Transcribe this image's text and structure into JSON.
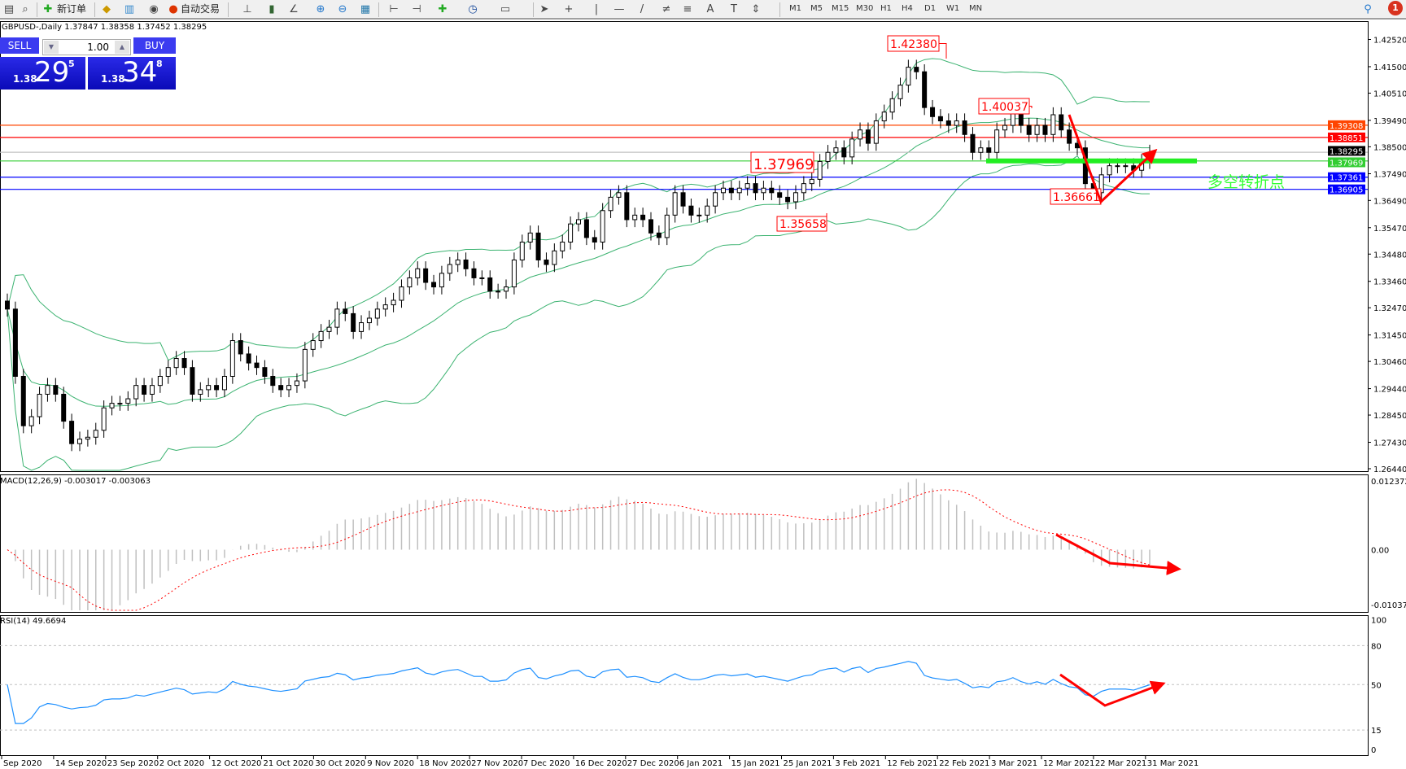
{
  "toolbar": {
    "new_order": "新订单",
    "auto_trading": "自动交易",
    "icons": [
      "new-chart-icon",
      "profiles-icon",
      "new-order-icon",
      "metaeditor-icon",
      "navigator-icon",
      "signals-icon",
      "auto-trading-icon",
      "bar-chart-icon",
      "candlestick-icon",
      "line-chart-icon",
      "zoom-in-icon",
      "zoom-out-icon",
      "tile-windows-icon",
      "chart-shift-icon",
      "autoscroll-icon",
      "indicators-icon",
      "periods-icon",
      "templates-icon",
      "cursor-icon",
      "crosshair-icon",
      "vertical-line-icon",
      "horizontal-line-icon",
      "trendline-icon",
      "equidistant-channel-icon",
      "fibonacci-icon",
      "text-icon",
      "text-label-icon",
      "arrows-icon"
    ],
    "timeframes": [
      "M1",
      "M5",
      "M15",
      "M30",
      "H1",
      "H4",
      "D1",
      "W1",
      "MN"
    ],
    "notification_count": "1"
  },
  "header": {
    "symbol_info": "GBPUSD-,Daily  1.37847 1.38358 1.37452 1.38295"
  },
  "trade_panel": {
    "sell_label": "SELL",
    "buy_label": "BUY",
    "lot": "1.00",
    "sell": {
      "big": "1.38",
      "main": "29",
      "pip": "5"
    },
    "buy": {
      "big": "1.38",
      "main": "34",
      "pip": "8"
    }
  },
  "macd_label": "MACD(12,26,9) -0.003017 -0.003063",
  "rsi_label": "RSI(14) 49.6694",
  "chart_data": {
    "type": "candlestick",
    "symbol": "GBPUSD",
    "timeframe": "Daily",
    "closes": [
      1.3242,
      1.299,
      1.2805,
      1.2839,
      1.2923,
      1.2956,
      1.2923,
      1.2822,
      1.2738,
      1.2755,
      1.2762,
      1.2788,
      1.2872,
      1.2889,
      1.2889,
      1.2906,
      1.2956,
      1.2923,
      1.2956,
      1.299,
      1.3023,
      1.3057,
      1.3023,
      1.2923,
      1.294,
      1.2956,
      1.294,
      1.299,
      1.3124,
      1.3074,
      1.304,
      1.3023,
      1.299,
      1.2956,
      1.294,
      1.2956,
      1.2973,
      1.3091,
      1.3124,
      1.3158,
      1.3174,
      1.3242,
      1.3225,
      1.3158,
      1.3191,
      1.3208,
      1.3242,
      1.3258,
      1.3275,
      1.3325,
      1.3359,
      1.3393,
      1.3342,
      1.3325,
      1.3376,
      1.3409,
      1.3426,
      1.3393,
      1.3359,
      1.3359,
      1.3309,
      1.3309,
      1.3325,
      1.3426,
      1.3493,
      1.3527,
      1.3426,
      1.3409,
      1.346,
      1.3493,
      1.3561,
      1.3577,
      1.351,
      1.3493,
      1.3611,
      1.3661,
      1.3678,
      1.3577,
      1.3594,
      1.3577,
      1.3527,
      1.351,
      1.3594,
      1.3678,
      1.3628,
      1.3594,
      1.3594,
      1.3628,
      1.3678,
      1.3695,
      1.3678,
      1.3695,
      1.3712,
      1.3678,
      1.3695,
      1.3678,
      1.3661,
      1.3644,
      1.3678,
      1.3712,
      1.3728,
      1.3795,
      1.3829,
      1.3846,
      1.3812,
      1.3879,
      1.3913,
      1.3863,
      1.3947,
      1.398,
      1.403,
      1.4081,
      1.4148,
      1.4131,
      1.3997,
      1.3963,
      1.3947,
      1.393,
      1.3947,
      1.3896,
      1.3829,
      1.3846,
      1.3829,
      1.3913,
      1.393,
      1.398,
      1.393,
      1.3896,
      1.393,
      1.3896,
      1.397,
      1.3913,
      1.3863,
      1.3846,
      1.3712,
      1.3678,
      1.3745,
      1.3779,
      1.3779,
      1.3779,
      1.3762,
      1.3795,
      1.38295
    ],
    "price_axis": [
      "1.42520",
      "1.41500",
      "1.40510",
      "1.39490",
      "1.38500",
      "1.37490",
      "1.36490",
      "1.35470",
      "1.34480",
      "1.33460",
      "1.32470",
      "1.31450",
      "1.30460",
      "1.29440",
      "1.28450",
      "1.27430",
      "1.26440"
    ],
    "ylim": [
      1.2644,
      1.4252
    ],
    "date_labels": [
      "Sep 2020",
      "14 Sep 2020",
      "23 Sep 2020",
      "2 Oct 2020",
      "12 Oct 2020",
      "21 Oct 2020",
      "30 Oct 2020",
      "9 Nov 2020",
      "18 Nov 2020",
      "27 Nov 2020",
      "7 Dec 2020",
      "16 Dec 2020",
      "27 Dec 2020",
      "6 Jan 2021",
      "15 Jan 2021",
      "25 Jan 2021",
      "3 Feb 2021",
      "12 Feb 2021",
      "22 Feb 2021",
      "3 Mar 2021",
      "12 Mar 2021",
      "22 Mar 2021",
      "31 Mar 2021"
    ],
    "indicators": {
      "bollinger": {
        "period": 20,
        "deviation": 2,
        "color": "#3cb371"
      },
      "macd": {
        "fast": 12,
        "slow": 26,
        "signal": 9,
        "axis": [
          "0.012372",
          "0.00",
          "-0.010374"
        ],
        "ylim": [
          -0.010374,
          0.012372
        ]
      },
      "rsi": {
        "period": 14,
        "axis": [
          "100",
          "80",
          "50",
          "15",
          "0"
        ],
        "levels": [
          80,
          50,
          15
        ]
      }
    },
    "horizontal_lines": [
      {
        "price": 1.39308,
        "label": "1.39308",
        "color": "#ff4500"
      },
      {
        "price": 1.38851,
        "label": "1.38851",
        "color": "#ff0000"
      },
      {
        "price": 1.38295,
        "label": "1.38295",
        "color": "#c0c0c0",
        "label_bg": "#000000"
      },
      {
        "price": 1.37969,
        "label": "1.37969",
        "color": "#32cd32"
      },
      {
        "price": 1.37361,
        "label": "1.37361",
        "color": "#0000ff"
      },
      {
        "price": 1.36905,
        "label": "1.36905",
        "color": "#0000ff"
      }
    ],
    "annotations": {
      "price_labels": [
        "1.42380",
        "1.40037",
        "1.37969",
        "1.35658",
        "1.36661"
      ],
      "pivot_text": "多空转折点",
      "pivot_color": "#32ff32",
      "arrow_color": "#ff0000"
    }
  }
}
